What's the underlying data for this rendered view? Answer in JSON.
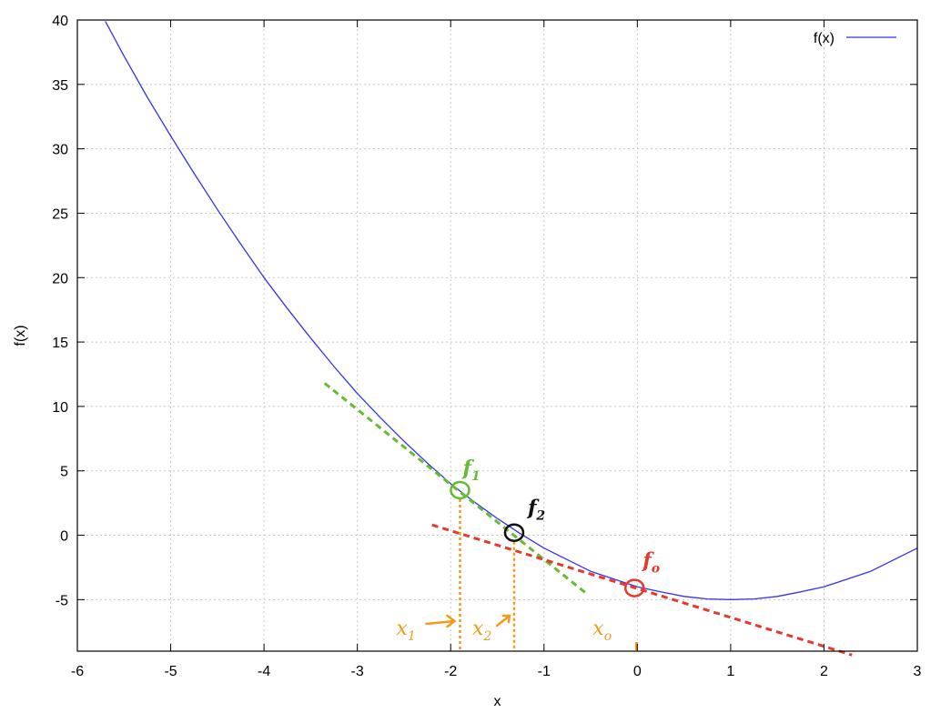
{
  "chart_data": {
    "type": "line",
    "xlabel": "x",
    "ylabel": "f(x)",
    "xlim": [
      -6,
      3
    ],
    "ylim": [
      -9,
      40
    ],
    "grid": true,
    "legend": {
      "placement": "top-right"
    },
    "x_ticks": [
      "-6",
      "-5",
      "-4",
      "-3",
      "-2",
      "-1",
      "0",
      "1",
      "2",
      "3"
    ],
    "y_ticks": [
      "40",
      "35",
      "30",
      "25",
      "20",
      "15",
      "10",
      "5",
      "0",
      "-5"
    ],
    "series": [
      {
        "name": "f(x)",
        "color": "#3333ee",
        "x": [
          -5.7,
          -5.5,
          -5.25,
          -5,
          -4.75,
          -4.5,
          -4.25,
          -4,
          -3.75,
          -3.5,
          -3.25,
          -3,
          -2.75,
          -2.5,
          -2.25,
          -2,
          -1.75,
          -1.5,
          -1.25,
          -1,
          -0.75,
          -0.5,
          -0.25,
          0,
          0.25,
          0.5,
          0.75,
          1,
          1.25,
          1.5,
          1.75,
          2,
          2.25,
          2.5,
          2.75,
          3
        ],
        "y": [
          39.9,
          37.2,
          34.0,
          31.0,
          28.1,
          25.3,
          22.6,
          20.0,
          17.6,
          15.3,
          13.1,
          11.0,
          9.1,
          7.3,
          5.6,
          4.0,
          2.6,
          1.3,
          0.1,
          -1.0,
          -1.9,
          -2.8,
          -3.4,
          -4.0,
          -4.4,
          -4.75,
          -4.95,
          -5.0,
          -4.95,
          -4.75,
          -4.4,
          -4.0,
          -3.4,
          -2.8,
          -1.9,
          -1.0
        ]
      }
    ],
    "annotations": {
      "tangent_lines": [
        {
          "color": "#66bb33",
          "x": [
            -3.35,
            -0.55
          ],
          "y": [
            11.8,
            -4.5
          ]
        },
        {
          "color": "#e8382c",
          "x": [
            -2.2,
            2.3
          ],
          "y": [
            0.8,
            -9.3
          ]
        }
      ],
      "points": [
        {
          "label": "f",
          "sub": "1",
          "color": "#66bb33",
          "x": -1.9,
          "y": 3.5
        },
        {
          "label": "f",
          "sub": "2",
          "color": "#111111",
          "x": -1.32,
          "y": 0.2
        },
        {
          "label": "f",
          "sub": "o",
          "color": "#e8382c",
          "x": -0.03,
          "y": -4.1
        }
      ],
      "x_markers": [
        {
          "label": "x",
          "sub": "1",
          "color": "#f39a1e",
          "x": -1.9,
          "y_top": 3.5,
          "arrow": true
        },
        {
          "label": "x",
          "sub": "2",
          "color": "#f39a1e",
          "x": -1.32,
          "y_top": 0.2,
          "arrow": true
        },
        {
          "label": "x",
          "sub": "o",
          "color": "#f39a1e",
          "x": -0.01,
          "y_top": null,
          "arrow": false
        }
      ]
    }
  }
}
